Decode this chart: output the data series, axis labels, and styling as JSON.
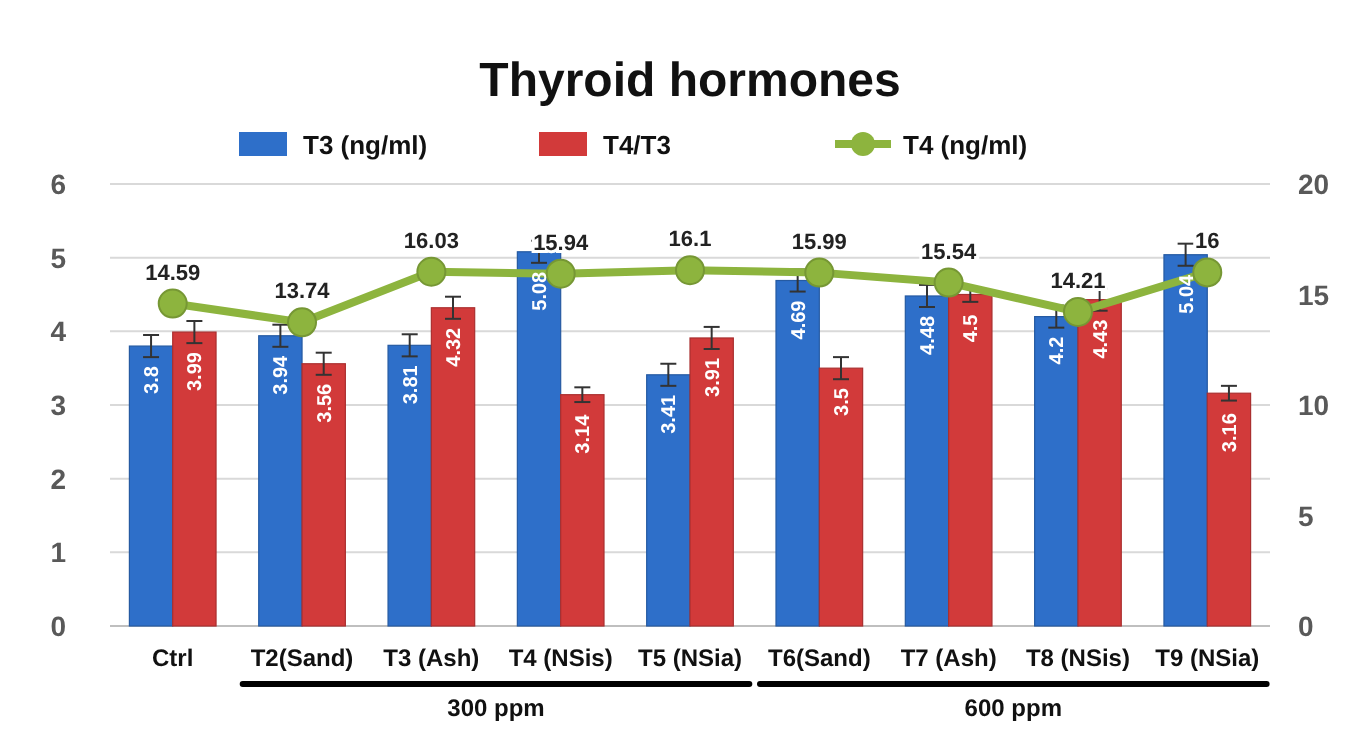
{
  "chart_data": {
    "type": "bar",
    "title": "Thyroid hormones",
    "categories": [
      "Ctrl",
      "T2(Sand)",
      "T3 (Ash)",
      "T4 (NSis)",
      "T5 (NSia)",
      "T6(Sand)",
      "T7 (Ash)",
      "T8 (NSis)",
      "T9 (NSia)"
    ],
    "series": [
      {
        "name": "T3 (ng/ml)",
        "color": "#2e6fc9",
        "values": [
          3.8,
          3.94,
          3.81,
          5.08,
          3.41,
          4.69,
          4.48,
          4.2,
          5.04
        ],
        "errors": [
          0.15,
          0.15,
          0.15,
          0.15,
          0.15,
          0.15,
          0.15,
          0.15,
          0.15
        ]
      },
      {
        "name": "T4/T3",
        "color": "#d23a3a",
        "values": [
          3.99,
          3.56,
          4.32,
          3.14,
          3.91,
          3.5,
          4.5,
          4.43,
          3.16
        ],
        "errors": [
          0.15,
          0.15,
          0.15,
          0.1,
          0.15,
          0.15,
          0.1,
          0.15,
          0.1
        ]
      },
      {
        "name": "T4 (ng/ml)",
        "type": "line",
        "axis": "y2",
        "color": "#8db43e",
        "values": [
          14.59,
          13.74,
          16.03,
          15.94,
          16.1,
          15.99,
          15.54,
          14.21,
          16
        ]
      }
    ],
    "ylim": [
      0,
      6
    ],
    "yticks": [
      0,
      1,
      2,
      3,
      4,
      5,
      6
    ],
    "y2lim": [
      0,
      20
    ],
    "y2ticks": [
      0,
      5,
      10,
      15,
      20
    ],
    "grid": "y",
    "legend": "top",
    "marker": "circle",
    "data_labels": true,
    "annotations": [
      "300 ppm",
      "600 ppm"
    ]
  }
}
